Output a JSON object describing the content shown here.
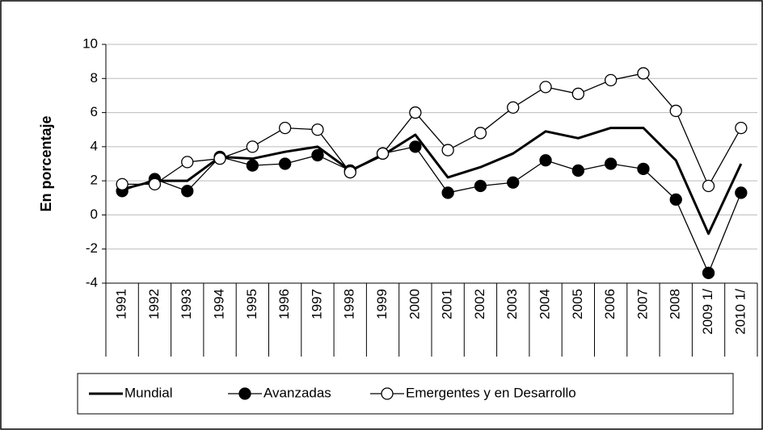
{
  "chart_data": {
    "type": "line",
    "y_label": "En porcentaje",
    "categories": [
      "1991",
      "1992",
      "1993",
      "1994",
      "1995",
      "1996",
      "1997",
      "1998",
      "1999",
      "2000",
      "2001",
      "2002",
      "2003",
      "2004",
      "2005",
      "2006",
      "2007",
      "2008",
      "2009 1/",
      "2010 1/"
    ],
    "series": [
      {
        "name": "Mundial",
        "color": "#000000",
        "marker": "none",
        "line_width": 3,
        "values": [
          1.5,
          2.0,
          2.0,
          3.4,
          3.3,
          3.7,
          4.0,
          2.6,
          3.5,
          4.7,
          2.2,
          2.8,
          3.6,
          4.9,
          4.5,
          5.1,
          5.1,
          3.2,
          -1.1,
          3.0
        ]
      },
      {
        "name": "Avanzadas",
        "color": "#000000",
        "marker": "filled",
        "line_width": 1.3,
        "values": [
          1.4,
          2.1,
          1.4,
          3.4,
          2.9,
          3.0,
          3.5,
          2.6,
          3.6,
          4.0,
          1.3,
          1.7,
          1.9,
          3.2,
          2.6,
          3.0,
          2.7,
          0.9,
          -3.4,
          1.3
        ]
      },
      {
        "name": "Emergentes y en Desarrollo",
        "color": "#000000",
        "marker": "open",
        "line_width": 1.3,
        "values": [
          1.8,
          1.8,
          3.1,
          3.3,
          4.0,
          5.1,
          5.0,
          2.5,
          3.6,
          6.0,
          3.8,
          4.8,
          6.3,
          7.5,
          7.1,
          7.9,
          8.3,
          6.1,
          1.7,
          5.1
        ]
      }
    ],
    "ylim": [
      -4,
      10
    ],
    "yticks": [
      -4,
      -2,
      0,
      2,
      4,
      6,
      8,
      10
    ],
    "grid": true,
    "legend": "bottom"
  }
}
